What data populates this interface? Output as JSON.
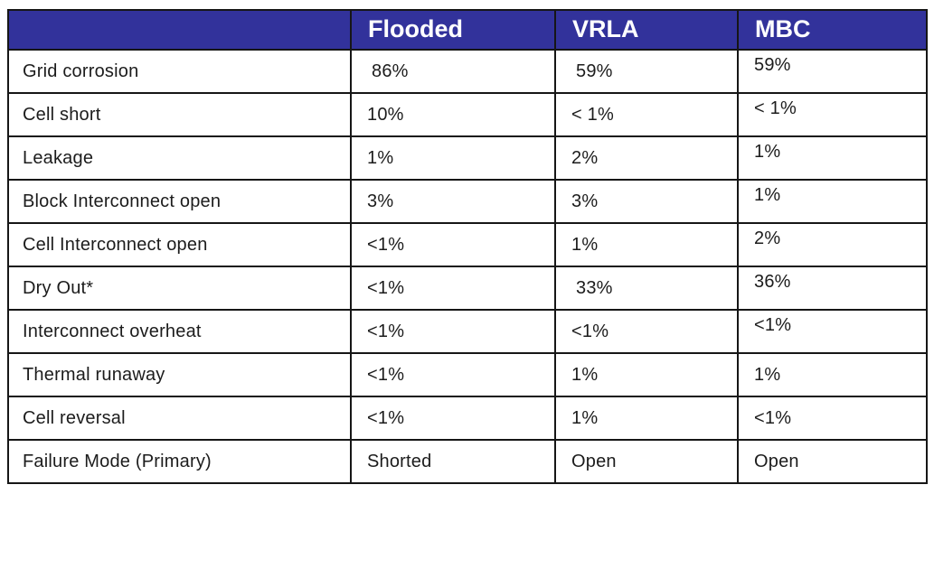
{
  "page": {
    "background_color": "#ffffff",
    "description": "Battery failure mode comparison table"
  },
  "table": {
    "header": {
      "bg_color": "#32329B",
      "text_color": "#ffffff",
      "corner_label": "",
      "columns": [
        "Flooded",
        "VRLA",
        "MBC"
      ]
    },
    "rows": [
      {
        "label": "Grid corrosion",
        "flooded": "86%",
        "vrla": "59%",
        "mbc": "59%"
      },
      {
        "label": "Cell short",
        "flooded": "10%",
        "vrla": "< 1%",
        "mbc": "< 1%"
      },
      {
        "label": "Leakage",
        "flooded": "1%",
        "vrla": "2%",
        "mbc": "1%"
      },
      {
        "label": "Block Interconnect open",
        "flooded": "3%",
        "vrla": "3%",
        "mbc": "1%"
      },
      {
        "label": "Cell Interconnect open",
        "flooded": "<1%",
        "vrla": "1%",
        "mbc": "2%"
      },
      {
        "label": "Dry Out*",
        "flooded": "<1%",
        "vrla": "33%",
        "mbc": "36%"
      },
      {
        "label": "Interconnect overheat",
        "flooded": "<1%",
        "vrla": "<1%",
        "mbc": "<1%"
      },
      {
        "label": "Thermal runaway",
        "flooded": "<1%",
        "vrla": "1%",
        "mbc": "1%"
      },
      {
        "label": "Cell reversal",
        "flooded": "<1%",
        "vrla": "1%",
        "mbc": "<1%"
      },
      {
        "label": "Failure Mode (Primary)",
        "flooded": "Shorted",
        "vrla": "Open",
        "mbc": "Open"
      }
    ]
  }
}
